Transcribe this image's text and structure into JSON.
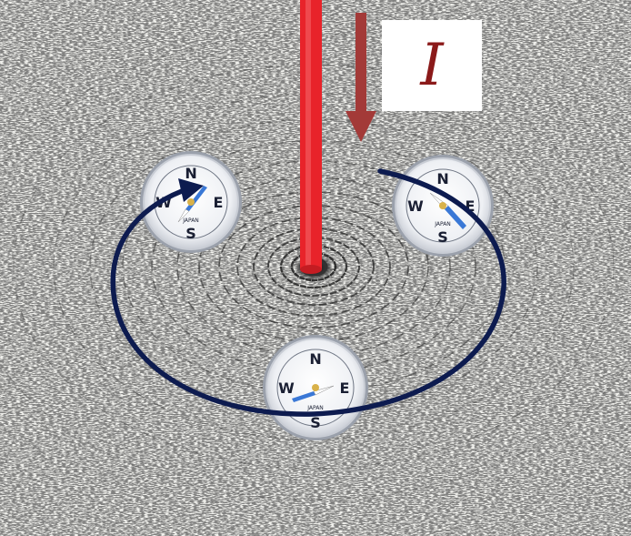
{
  "current_label": "I",
  "colors": {
    "wire": "#e8232a",
    "current_arrow": "#a33a38",
    "field_loop": "#0d1b4f",
    "compass_needle": "#3a78d6",
    "filings": "#1c1c1c",
    "label": "#8b1a1a"
  },
  "compasses": [
    {
      "id": "left",
      "cardinals": [
        "N",
        "E",
        "S",
        "W"
      ],
      "brand": "JAPAN"
    },
    {
      "id": "right",
      "cardinals": [
        "N",
        "E",
        "S",
        "W"
      ],
      "brand": "JAPAN"
    },
    {
      "id": "bottom",
      "cardinals": [
        "N",
        "E",
        "S",
        "W"
      ],
      "brand": "JAPAN"
    }
  ]
}
